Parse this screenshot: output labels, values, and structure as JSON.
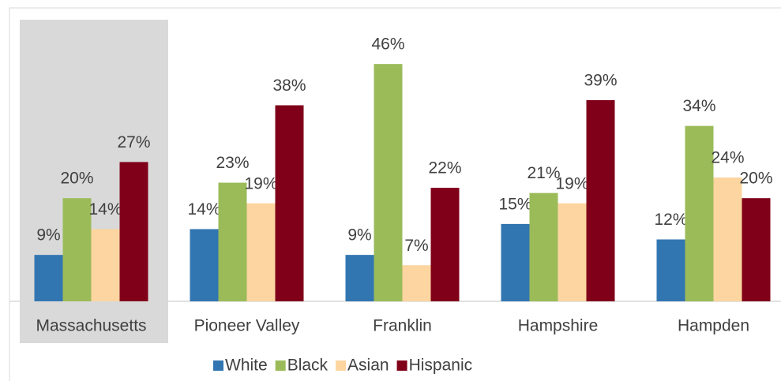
{
  "chart_data": {
    "type": "bar",
    "categories": [
      "Massachusetts",
      "Pioneer Valley",
      "Franklin",
      "Hampshire",
      "Hampden"
    ],
    "series": [
      {
        "name": "White",
        "color": "#3276b1",
        "values": [
          9,
          14,
          9,
          15,
          12
        ],
        "value_labels": [
          "9%",
          "14%",
          "9%",
          "15%",
          "12%"
        ]
      },
      {
        "name": "Black",
        "color": "#9bbb59",
        "values": [
          20,
          23,
          46,
          21,
          34
        ],
        "value_labels": [
          "20%",
          "23%",
          "46%",
          "21%",
          "34%"
        ]
      },
      {
        "name": "Asian",
        "color": "#fcd5a0",
        "values": [
          14,
          19,
          7,
          19,
          24
        ],
        "value_labels": [
          "14%",
          "19%",
          "7%",
          "19%",
          "24%"
        ]
      },
      {
        "name": "Hispanic",
        "color": "#7f0018",
        "values": [
          27,
          38,
          22,
          39,
          20
        ],
        "value_labels": [
          "27%",
          "38%",
          "22%",
          "39%",
          "20%"
        ]
      }
    ],
    "ylim": [
      0,
      50
    ],
    "legend": "bottom"
  }
}
